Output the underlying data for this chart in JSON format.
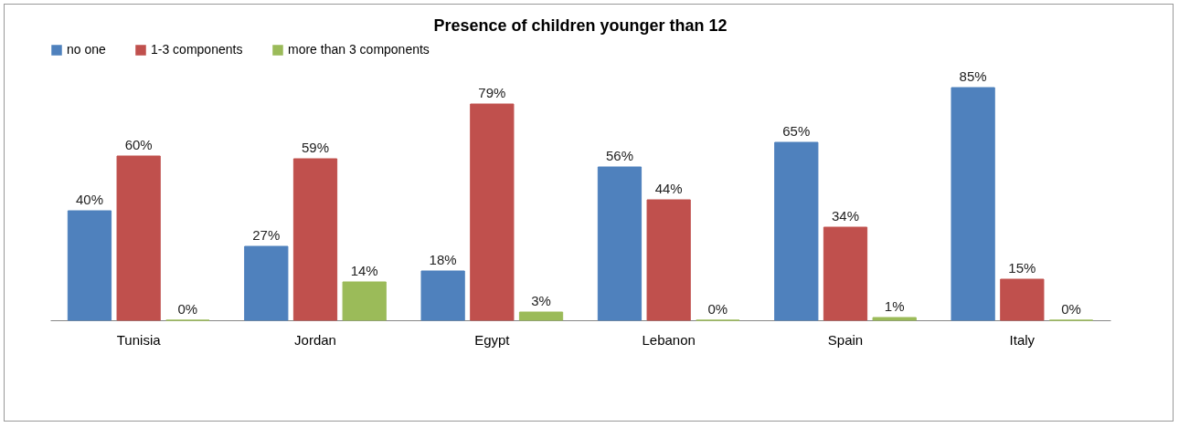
{
  "chart_data": {
    "type": "bar",
    "title": "Presence of children younger than 12",
    "categories": [
      "Tunisia",
      "Jordan",
      "Egypt",
      "Lebanon",
      "Spain",
      "Italy"
    ],
    "series": [
      {
        "name": "no one",
        "color": "#4f81bd",
        "values": [
          40,
          27,
          18,
          56,
          65,
          85
        ],
        "value_labels": [
          "40%",
          "27%",
          "18%",
          "56%",
          "65%",
          "85%"
        ]
      },
      {
        "name": "1-3 components",
        "color": "#c0504d",
        "values": [
          60,
          59,
          79,
          44,
          34,
          15
        ],
        "value_labels": [
          "60%",
          "59%",
          "79%",
          "44%",
          "34%",
          "15%"
        ]
      },
      {
        "name": "more than 3 components",
        "color": "#9bbb59",
        "values": [
          0,
          14,
          3,
          0,
          1,
          0
        ],
        "value_labels": [
          "0%",
          "14%",
          "3%",
          "0%",
          "1%",
          "0%"
        ]
      }
    ],
    "legend": "top",
    "grid": false
  }
}
